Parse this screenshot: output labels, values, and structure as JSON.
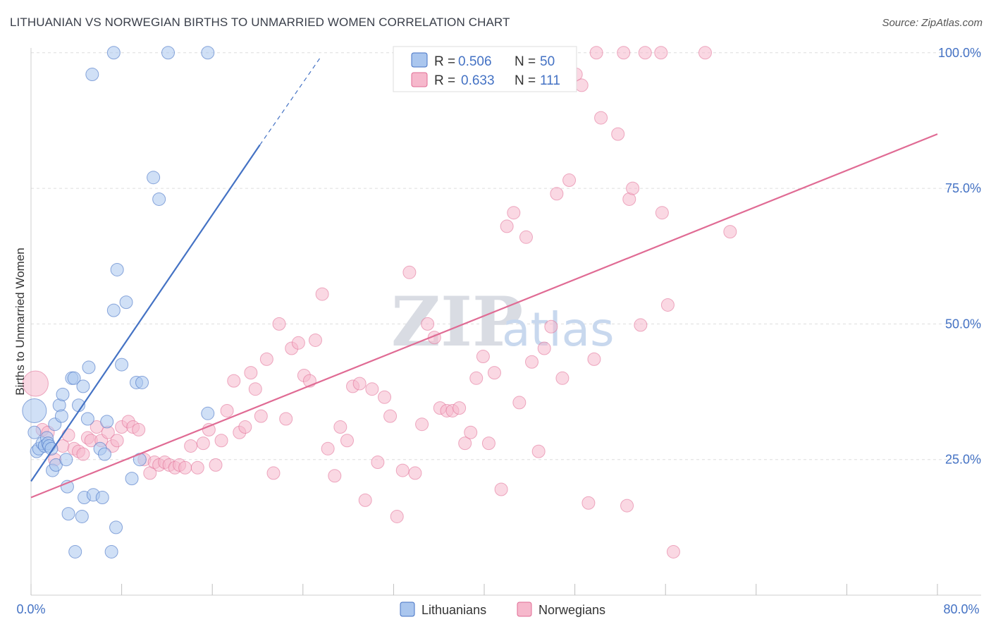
{
  "header": {
    "title": "LITHUANIAN VS NORWEGIAN BIRTHS TO UNMARRIED WOMEN CORRELATION CHART",
    "source": "Source: ZipAtlas.com"
  },
  "watermark": {
    "zip": "ZIP",
    "atlas": "atlas"
  },
  "colors": {
    "lithuanians": "#4472c4",
    "lithuanians_fill": "#aac6ee",
    "norwegians": "#e06b94",
    "norwegians_fill": "#f6b8cc",
    "grid": "#dddddd",
    "label": "#4472c4"
  },
  "chart_data": {
    "type": "scatter",
    "title": "LITHUANIAN VS NORWEGIAN BIRTHS TO UNMARRIED WOMEN CORRELATION CHART",
    "xlabel": "",
    "ylabel": "Births to Unmarried Women",
    "xlim": [
      0,
      80
    ],
    "ylim": [
      0,
      104
    ],
    "x_tick_labels": [
      "0.0%",
      "80.0%"
    ],
    "y_ticks": [
      25,
      50,
      75,
      100
    ],
    "y_tick_labels": [
      "25.0%",
      "50.0%",
      "75.0%",
      "100.0%"
    ],
    "legend_stats": [
      {
        "r_label": "R =",
        "r": "0.506",
        "n_label": "N =",
        "n": "50"
      },
      {
        "r_label": "R =",
        "r": "0.633",
        "n_label": "N =",
        "n": "111"
      }
    ],
    "series": [
      {
        "name": "Lithuanians",
        "trend": {
          "x0": 0,
          "y0": 21,
          "x1": 20.2,
          "y1": 83,
          "dash_to_x": 25.5,
          "dash_to_y": 99
        },
        "points": [
          [
            0.3,
            34
          ],
          [
            0.3,
            30
          ],
          [
            0.5,
            26.5
          ],
          [
            0.7,
            27
          ],
          [
            1.0,
            28
          ],
          [
            1.2,
            27.5
          ],
          [
            1.4,
            29
          ],
          [
            1.5,
            28
          ],
          [
            1.6,
            27.5
          ],
          [
            1.8,
            27
          ],
          [
            1.9,
            23
          ],
          [
            2.1,
            31.5
          ],
          [
            2.2,
            24
          ],
          [
            2.5,
            35
          ],
          [
            2.7,
            33
          ],
          [
            2.8,
            37
          ],
          [
            3.1,
            25
          ],
          [
            3.2,
            20
          ],
          [
            3.3,
            15
          ],
          [
            3.6,
            40
          ],
          [
            3.8,
            40
          ],
          [
            3.9,
            8
          ],
          [
            4.2,
            35
          ],
          [
            4.5,
            14.5
          ],
          [
            4.6,
            38.5
          ],
          [
            4.7,
            18
          ],
          [
            5.0,
            32.5
          ],
          [
            5.1,
            42
          ],
          [
            5.5,
            18.5
          ],
          [
            6.1,
            27
          ],
          [
            6.3,
            18
          ],
          [
            6.5,
            26
          ],
          [
            6.7,
            32
          ],
          [
            7.1,
            8
          ],
          [
            7.3,
            52.5
          ],
          [
            7.5,
            12.5
          ],
          [
            7.6,
            60
          ],
          [
            8.0,
            42.5
          ],
          [
            8.4,
            54
          ],
          [
            8.9,
            21.5
          ],
          [
            9.3,
            39.2
          ],
          [
            9.6,
            25
          ],
          [
            9.8,
            39.2
          ],
          [
            10.8,
            77
          ],
          [
            11.3,
            73
          ],
          [
            5.4,
            96
          ],
          [
            7.3,
            100
          ],
          [
            12.1,
            100
          ],
          [
            15.6,
            100
          ],
          [
            15.6,
            33.5
          ]
        ]
      },
      {
        "name": "Norwegians",
        "trend": {
          "x0": 0,
          "y0": 18,
          "x1": 80,
          "y1": 85
        },
        "points": [
          [
            0.4,
            39
          ],
          [
            1.0,
            30.5
          ],
          [
            1.5,
            30
          ],
          [
            2.1,
            25
          ],
          [
            2.8,
            27.5
          ],
          [
            3.3,
            29.5
          ],
          [
            3.8,
            27
          ],
          [
            4.2,
            26.5
          ],
          [
            4.6,
            26
          ],
          [
            5.0,
            29
          ],
          [
            5.3,
            28.5
          ],
          [
            5.8,
            31
          ],
          [
            6.2,
            28.5
          ],
          [
            6.8,
            30
          ],
          [
            7.2,
            27.5
          ],
          [
            7.6,
            28.5
          ],
          [
            8.0,
            31
          ],
          [
            8.6,
            32
          ],
          [
            9.0,
            31
          ],
          [
            9.5,
            30.5
          ],
          [
            10.0,
            25
          ],
          [
            10.5,
            22.5
          ],
          [
            10.9,
            24.5
          ],
          [
            11.3,
            24
          ],
          [
            11.8,
            24.5
          ],
          [
            12.2,
            24
          ],
          [
            12.7,
            23.5
          ],
          [
            13.1,
            24
          ],
          [
            13.6,
            23.5
          ],
          [
            14.1,
            27.5
          ],
          [
            14.7,
            23.5
          ],
          [
            15.2,
            28
          ],
          [
            15.7,
            30.5
          ],
          [
            16.3,
            24
          ],
          [
            16.8,
            28.5
          ],
          [
            17.3,
            34
          ],
          [
            17.9,
            39.5
          ],
          [
            18.4,
            30
          ],
          [
            18.9,
            31
          ],
          [
            19.4,
            41
          ],
          [
            19.8,
            38
          ],
          [
            20.3,
            33
          ],
          [
            20.8,
            43.5
          ],
          [
            21.4,
            22.5
          ],
          [
            21.9,
            50
          ],
          [
            22.5,
            32.5
          ],
          [
            23.0,
            45.5
          ],
          [
            23.6,
            46.5
          ],
          [
            24.1,
            40.5
          ],
          [
            24.6,
            39.5
          ],
          [
            25.1,
            47
          ],
          [
            25.7,
            55.5
          ],
          [
            26.2,
            27
          ],
          [
            26.8,
            22
          ],
          [
            27.3,
            31
          ],
          [
            27.9,
            28.5
          ],
          [
            28.4,
            38.5
          ],
          [
            29.0,
            39
          ],
          [
            29.5,
            17.5
          ],
          [
            30.1,
            38
          ],
          [
            30.6,
            24.5
          ],
          [
            31.2,
            36.5
          ],
          [
            31.7,
            33
          ],
          [
            32.3,
            14.5
          ],
          [
            32.8,
            23
          ],
          [
            33.4,
            59.5
          ],
          [
            33.9,
            22.5
          ],
          [
            34.5,
            31.5
          ],
          [
            35.0,
            50
          ],
          [
            35.6,
            47.5
          ],
          [
            36.1,
            34.5
          ],
          [
            36.7,
            34
          ],
          [
            37.2,
            34
          ],
          [
            37.8,
            34.5
          ],
          [
            38.3,
            28
          ],
          [
            38.8,
            30
          ],
          [
            39.3,
            40
          ],
          [
            39.9,
            44
          ],
          [
            40.4,
            28
          ],
          [
            40.9,
            41
          ],
          [
            41.5,
            19.5
          ],
          [
            42.0,
            68
          ],
          [
            42.6,
            70.5
          ],
          [
            43.1,
            35.5
          ],
          [
            43.7,
            66
          ],
          [
            44.2,
            43
          ],
          [
            44.8,
            26.5
          ],
          [
            45.3,
            45.5
          ],
          [
            45.9,
            49.5
          ],
          [
            46.4,
            74
          ],
          [
            46.9,
            40
          ],
          [
            47.5,
            76.5
          ],
          [
            48.1,
            96
          ],
          [
            48.6,
            94
          ],
          [
            49.2,
            17
          ],
          [
            49.7,
            43.5
          ],
          [
            50.3,
            88
          ],
          [
            51.8,
            85
          ],
          [
            52.8,
            73
          ],
          [
            52.6,
            16.5
          ],
          [
            53.1,
            75
          ],
          [
            53.8,
            49.8
          ],
          [
            55.7,
            70.5
          ],
          [
            56.2,
            53.5
          ],
          [
            56.7,
            8
          ],
          [
            61.7,
            67
          ],
          [
            49.9,
            100
          ],
          [
            52.3,
            100
          ],
          [
            54.2,
            100
          ],
          [
            55.6,
            100
          ],
          [
            59.5,
            100
          ]
        ]
      }
    ]
  },
  "bottom_legend": {
    "lithuanians": "Lithuanians",
    "norwegians": "Norwegians"
  }
}
